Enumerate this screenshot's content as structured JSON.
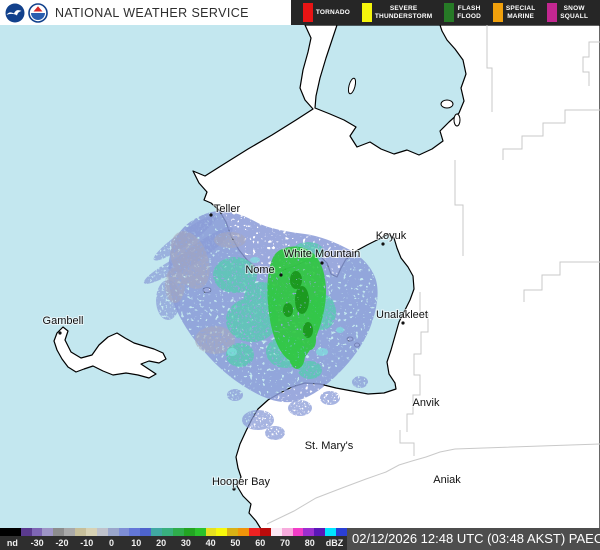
{
  "header": {
    "agency_title": "NATIONAL WEATHER SERVICE",
    "logos": [
      "noaa-logo",
      "nws-logo"
    ]
  },
  "alerts_legend": {
    "background": "#262626",
    "items": [
      {
        "label": "TORNADO",
        "color": "#e81414"
      },
      {
        "label": "SEVERE THUNDERSTORM",
        "color": "#f5f50c"
      },
      {
        "label": "FLASH FLOOD",
        "color": "#267a26"
      },
      {
        "label": "SPECIAL MARINE",
        "color": "#f0a00c"
      },
      {
        "label": "SNOW SQUALL",
        "color": "#c22790"
      }
    ]
  },
  "map": {
    "sea_color": "#c3e7ef",
    "land_color": "#ffffff",
    "coast_color": "#000000",
    "zone_boundary_color": "#c9c9c9",
    "cities": [
      {
        "name": "Teller"
      },
      {
        "name": "Nome"
      },
      {
        "name": "White Mountain"
      },
      {
        "name": "Koyuk"
      },
      {
        "name": "Unalakleet"
      },
      {
        "name": "Gambell"
      },
      {
        "name": "Anvik"
      },
      {
        "name": "St. Mary's"
      },
      {
        "name": "Aniak"
      },
      {
        "name": "Hooper Bay"
      }
    ],
    "radar_colors": {
      "light_precip_blue": "#8a9bd8",
      "outer_gray": "#a8a8bc",
      "moderate_teal": "#58cbb2",
      "heavy_green": "#2ec83e",
      "heaviest_dark_green": "#169016",
      "cyan_specks": "#7fe3df"
    }
  },
  "colorbar": {
    "labels": [
      "nd",
      "-30",
      "-20",
      "-10",
      "0",
      "10",
      "20",
      "30",
      "40",
      "50",
      "60",
      "70",
      "80",
      "dBZ"
    ],
    "segments": [
      "#000000",
      "#5a3a8e",
      "#7e66b4",
      "#9e95c6",
      "#8d8d8d",
      "#a9a9a9",
      "#c7bf9a",
      "#d8d2b4",
      "#bfc2cb",
      "#9aa6cb",
      "#7e8ed6",
      "#6377d8",
      "#4d63cc",
      "#40a8a2",
      "#38b07e",
      "#2fae4c",
      "#23a523",
      "#2bc22b",
      "#e6e020",
      "#f7f70b",
      "#d9b115",
      "#f0940a",
      "#ee2222",
      "#bb0c0c",
      "#fce9f5",
      "#f7abdd",
      "#f23cc7",
      "#9c2fd0",
      "#5a18b8",
      "#00e4ff",
      "#2a3fd4"
    ]
  },
  "status": {
    "timestamp": "02/12/2026 12:48 UTC (03:48 AKST) PAEC"
  }
}
